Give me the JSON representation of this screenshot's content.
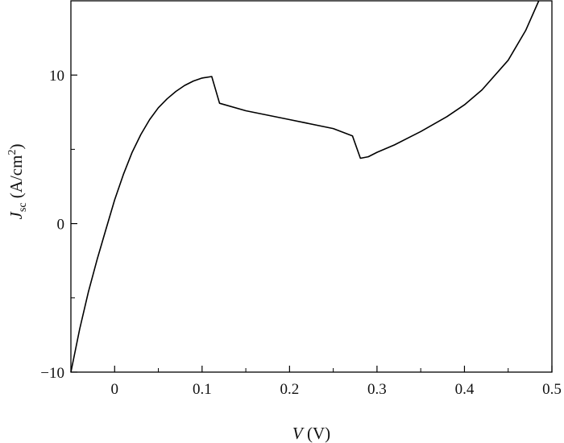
{
  "chart_data": {
    "type": "line",
    "xlabel": {
      "var": "V",
      "unit": " (V)"
    },
    "ylabel": {
      "var": "J",
      "sub": "sc",
      "unit_open": " (A/cm",
      "sup": "2",
      "unit_close": ")"
    },
    "xlim": [
      -0.05,
      0.5
    ],
    "ylim": [
      -10,
      15
    ],
    "x_ticks": [
      0,
      0.1,
      0.2,
      0.3,
      0.4,
      0.5
    ],
    "x_tick_labels": [
      "0",
      "0.1",
      "0.2",
      "0.3",
      "0.4",
      "0.5"
    ],
    "y_ticks": [
      -10,
      0,
      10
    ],
    "y_tick_labels": [
      "−10",
      "0",
      "10"
    ],
    "grid": false,
    "legend": "none",
    "line_color": "#000000",
    "series": [
      {
        "x": [
          -0.05,
          -0.04,
          -0.03,
          -0.02,
          -0.01,
          0,
          0.01,
          0.02,
          0.03,
          0.04,
          0.05,
          0.06,
          0.07,
          0.08,
          0.09,
          0.1,
          0.111,
          0.12,
          0.15,
          0.2,
          0.25,
          0.272,
          0.281,
          0.29,
          0.3,
          0.32,
          0.35,
          0.38,
          0.4,
          0.42,
          0.45,
          0.47,
          0.485
        ],
        "y": [
          -10,
          -7.1,
          -4.6,
          -2.4,
          -0.4,
          1.6,
          3.3,
          4.8,
          6.0,
          7.0,
          7.8,
          8.4,
          8.9,
          9.3,
          9.6,
          9.8,
          9.9,
          8.1,
          7.6,
          7.0,
          6.4,
          5.9,
          4.4,
          4.5,
          4.8,
          5.3,
          6.2,
          7.2,
          8.0,
          9.0,
          11.0,
          13.0,
          15.0
        ]
      }
    ]
  }
}
